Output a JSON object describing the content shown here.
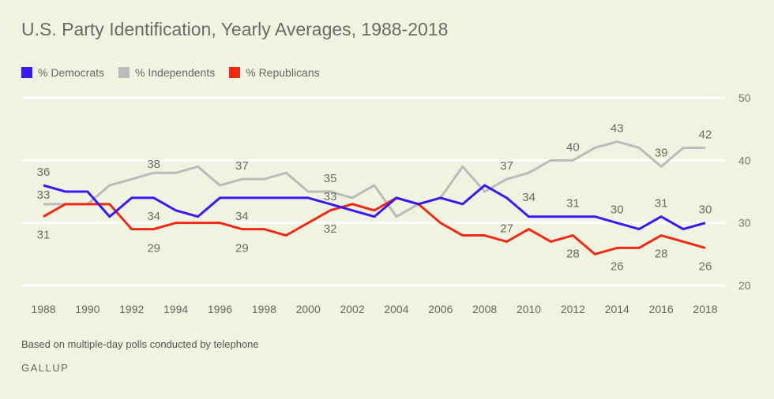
{
  "chart_data": {
    "type": "line",
    "title": "U.S. Party Identification, Yearly Averages, 1988-2018",
    "xlabel": "",
    "ylabel": "",
    "x": [
      1988,
      1989,
      1990,
      1991,
      1992,
      1993,
      1994,
      1995,
      1996,
      1997,
      1998,
      1999,
      2000,
      2001,
      2002,
      2003,
      2004,
      2005,
      2006,
      2007,
      2008,
      2009,
      2010,
      2011,
      2012,
      2013,
      2014,
      2015,
      2016,
      2017,
      2018
    ],
    "xticks": [
      1988,
      1990,
      1992,
      1994,
      1996,
      1998,
      2000,
      2002,
      2004,
      2006,
      2008,
      2010,
      2012,
      2014,
      2016,
      2018
    ],
    "yticks": [
      20,
      30,
      40,
      50
    ],
    "ylim": [
      20,
      50
    ],
    "grid": true,
    "legend_position": "top-left",
    "y_axis_side": "right",
    "series": [
      {
        "name": "% Democrats",
        "color": "#3a17f5",
        "values": [
          36,
          35,
          35,
          31,
          34,
          34,
          32,
          31,
          34,
          34,
          34,
          34,
          34,
          33,
          32,
          31,
          34,
          33,
          34,
          33,
          36,
          34,
          31,
          31,
          31,
          31,
          30,
          29,
          31,
          29,
          30
        ],
        "labeled_years": [
          1988,
          1993,
          1997,
          2001,
          2009,
          2012,
          2014,
          2016,
          2018
        ]
      },
      {
        "name": "% Independents",
        "color": "#bbbbbb",
        "values": [
          33,
          33,
          33,
          36,
          37,
          38,
          38,
          39,
          36,
          37,
          37,
          38,
          35,
          35,
          34,
          36,
          31,
          33,
          34,
          39,
          35,
          37,
          38,
          40,
          40,
          42,
          43,
          42,
          39,
          42,
          42
        ],
        "labeled_years": [
          1988,
          1993,
          1997,
          2001,
          2009,
          2012,
          2014,
          2016,
          2018
        ]
      },
      {
        "name": "% Republicans",
        "color": "#f02814",
        "values": [
          31,
          33,
          33,
          33,
          29,
          29,
          30,
          30,
          30,
          29,
          29,
          28,
          30,
          32,
          33,
          32,
          34,
          33,
          30,
          28,
          28,
          27,
          29,
          27,
          28,
          25,
          26,
          26,
          28,
          27,
          26
        ],
        "labeled_years": [
          1988,
          1993,
          1997,
          2001,
          2009,
          2012,
          2014,
          2016,
          2018
        ]
      }
    ]
  },
  "footer": {
    "note": "Based on multiple-day polls conducted by telephone",
    "brand": "GALLUP"
  }
}
